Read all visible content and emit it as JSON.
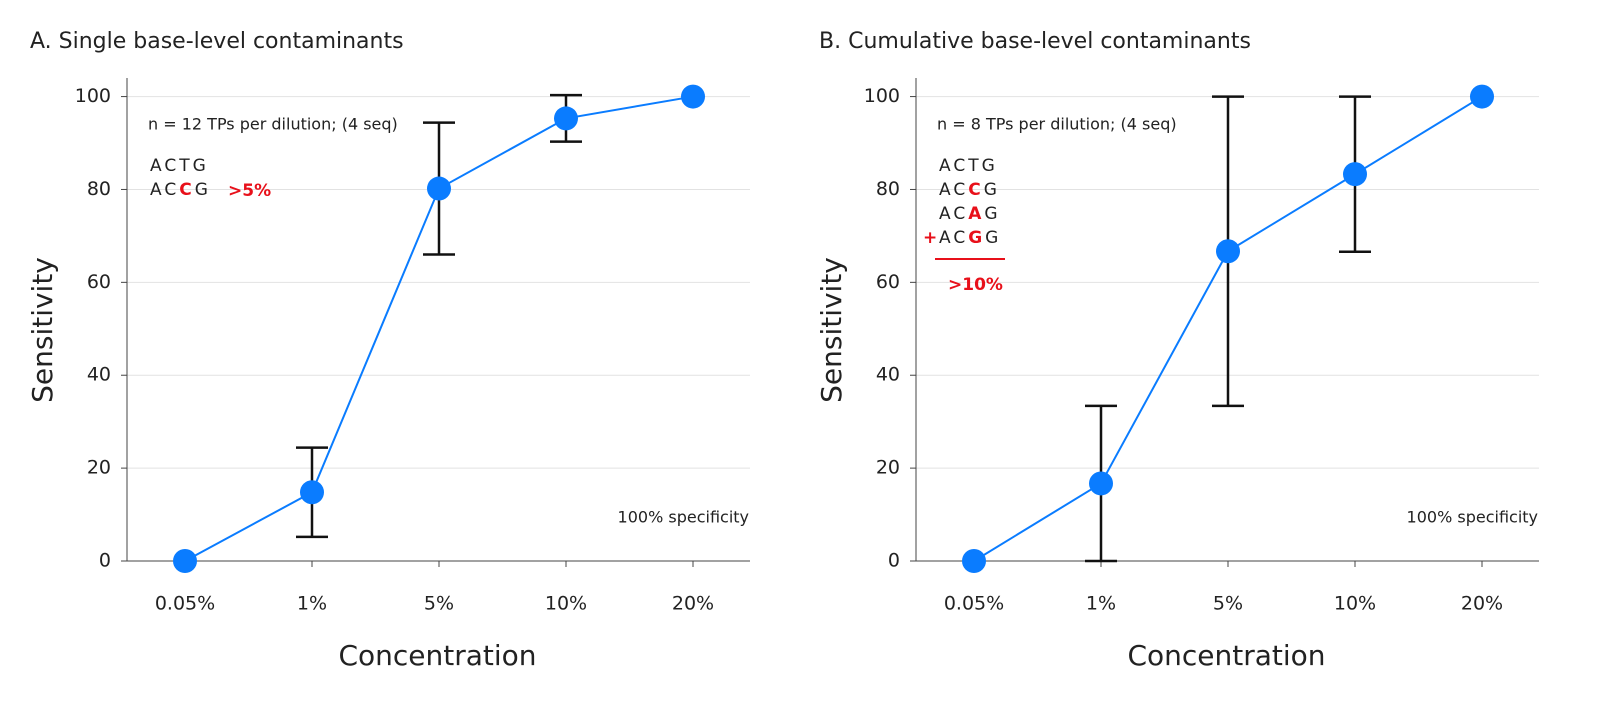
{
  "chart_data": [
    {
      "type": "line",
      "title": "A. Single base-level contaminants",
      "x_label": "Concentration",
      "y_label": "Sensitivity",
      "categories": [
        "0.05%",
        "1%",
        "5%",
        "10%",
        "20%"
      ],
      "series": [
        {
          "name": "Sensitivity",
          "color": "#0a7cff",
          "values": [
            0,
            14.8,
            80.2,
            95.3,
            100
          ],
          "errors": [
            null,
            9.6,
            14.2,
            5.0,
            null
          ]
        }
      ],
      "ylim": [
        0,
        104
      ],
      "yticks": [
        0,
        20,
        40,
        60,
        80,
        100
      ],
      "grid": true,
      "annotations": {
        "note": "n = 12 TPs per dilution; (4 seq)",
        "reference": "ACTG",
        "variants": [
          {
            "pre": "AC",
            "base": "C",
            "post": "G"
          }
        ],
        "threshold": ">5%",
        "specificity": "100% specificity"
      }
    },
    {
      "type": "line",
      "title": "B. Cumulative base-level contaminants",
      "x_label": "Concentration",
      "y_label": "Sensitivity",
      "categories": [
        "0.05%",
        "1%",
        "5%",
        "10%",
        "20%"
      ],
      "series": [
        {
          "name": "Sensitivity",
          "color": "#0a7cff",
          "values": [
            0,
            16.7,
            66.7,
            83.3,
            100
          ],
          "errors": [
            null,
            16.7,
            33.3,
            16.7,
            null
          ]
        }
      ],
      "ylim": [
        0,
        104
      ],
      "yticks": [
        0,
        20,
        40,
        60,
        80,
        100
      ],
      "grid": true,
      "annotations": {
        "note": "n = 8 TPs per dilution; (4 seq)",
        "reference": "ACTG",
        "variants": [
          {
            "pre": "AC",
            "base": "C",
            "post": "G"
          },
          {
            "pre": "AC",
            "base": "A",
            "post": "G"
          },
          {
            "pre": "AC",
            "base": "G",
            "post": "G"
          }
        ],
        "plus": "+",
        "threshold": ">10%",
        "specificity": "100% specificity"
      }
    }
  ]
}
